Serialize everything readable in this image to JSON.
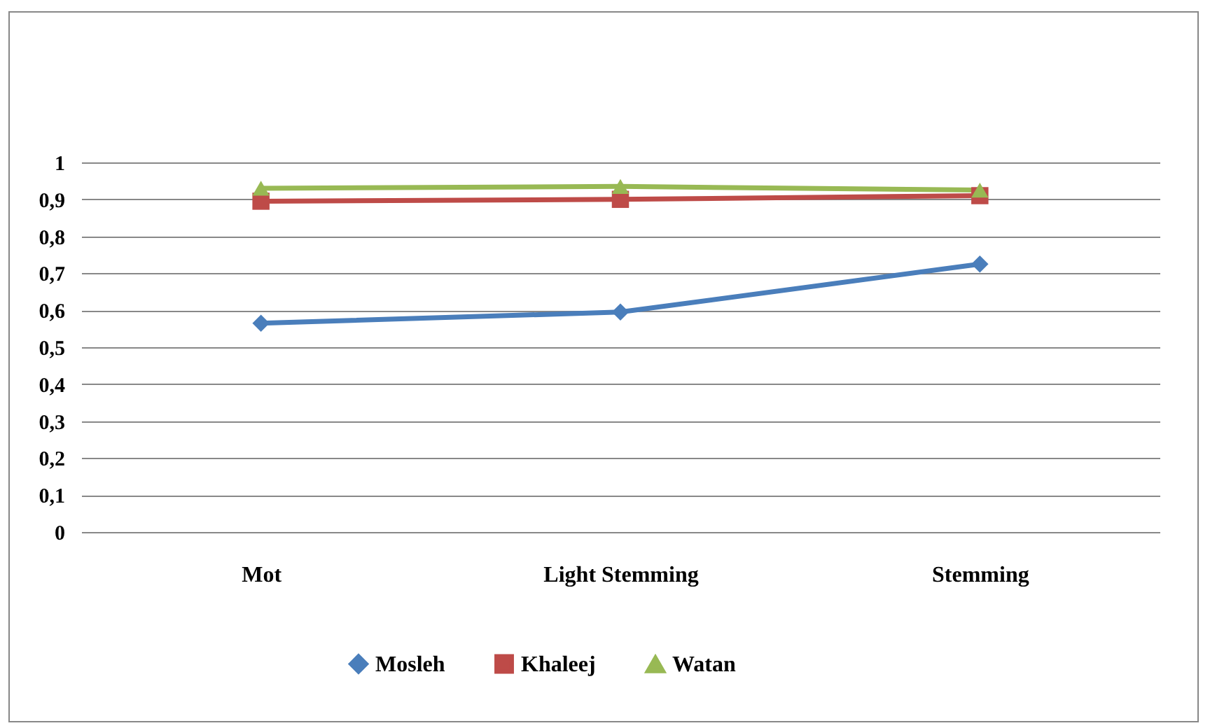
{
  "chart_data": {
    "type": "line",
    "categories": [
      "Mot",
      "Light Stemming",
      "Stemming"
    ],
    "series": [
      {
        "name": "Mosleh",
        "color": "#4a7ebb",
        "marker": "diamond",
        "values": [
          0.565,
          0.595,
          0.725
        ]
      },
      {
        "name": "Khaleej",
        "color": "#be4b48",
        "marker": "square",
        "values": [
          0.895,
          0.9,
          0.91
        ]
      },
      {
        "name": "Watan",
        "color": "#98b954",
        "marker": "triangle",
        "values": [
          0.93,
          0.935,
          0.925
        ]
      }
    ],
    "ylim": [
      0,
      1
    ],
    "yticks": [
      {
        "value": 0,
        "label": "0"
      },
      {
        "value": 0.1,
        "label": "0,1"
      },
      {
        "value": 0.2,
        "label": "0,2"
      },
      {
        "value": 0.3,
        "label": "0,3"
      },
      {
        "value": 0.4,
        "label": "0,4"
      },
      {
        "value": 0.5,
        "label": "0,5"
      },
      {
        "value": 0.6,
        "label": "0,6"
      },
      {
        "value": 0.7,
        "label": "0,7"
      },
      {
        "value": 0.8,
        "label": "0,8"
      },
      {
        "value": 0.9,
        "label": "0,9"
      },
      {
        "value": 1,
        "label": "1"
      }
    ],
    "grid": "y",
    "legend": "bottom",
    "line_style": "solid"
  }
}
